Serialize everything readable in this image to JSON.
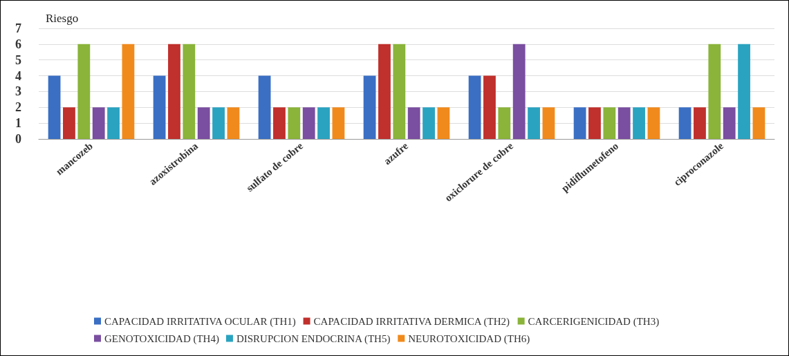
{
  "chart_data": {
    "type": "bar",
    "ylabel": "Riesgo",
    "categories": [
      "mancozeb",
      "azoxistrobina",
      "sulfato de cobre",
      "azufre",
      "oxiclorure de cobre",
      "pidiflumetofeno",
      "ciproconazole"
    ],
    "series": [
      {
        "name": "CAPACIDAD IRRITATIVA OCULAR (TH1)",
        "color": "#3a6fc4",
        "values": [
          4,
          4,
          4,
          4,
          4,
          2,
          2
        ]
      },
      {
        "name": "CAPACIDAD IRRITATIVA DERMICA (TH2)",
        "color": "#c0302c",
        "values": [
          2,
          6,
          2,
          6,
          4,
          2,
          2
        ]
      },
      {
        "name": "CARCERIGENICIDAD (TH3)",
        "color": "#8ab43a",
        "values": [
          6,
          6,
          2,
          6,
          2,
          2,
          6
        ]
      },
      {
        "name": "GENOTOXICIDAD (TH4)",
        "color": "#7a4ea0",
        "values": [
          2,
          2,
          2,
          2,
          6,
          2,
          2
        ]
      },
      {
        "name": "DISRUPCION ENDOCRINA (TH5)",
        "color": "#2aa3c0",
        "values": [
          2,
          2,
          2,
          2,
          2,
          2,
          6
        ]
      },
      {
        "name": "NEUROTOXICIDAD (TH6)",
        "color": "#f08a1c",
        "values": [
          6,
          2,
          2,
          2,
          2,
          2,
          2
        ]
      }
    ],
    "ylim": [
      0,
      7
    ],
    "yticks": [
      0,
      1,
      2,
      3,
      4,
      5,
      6,
      7
    ],
    "grid": "y",
    "legend": "bottom"
  }
}
